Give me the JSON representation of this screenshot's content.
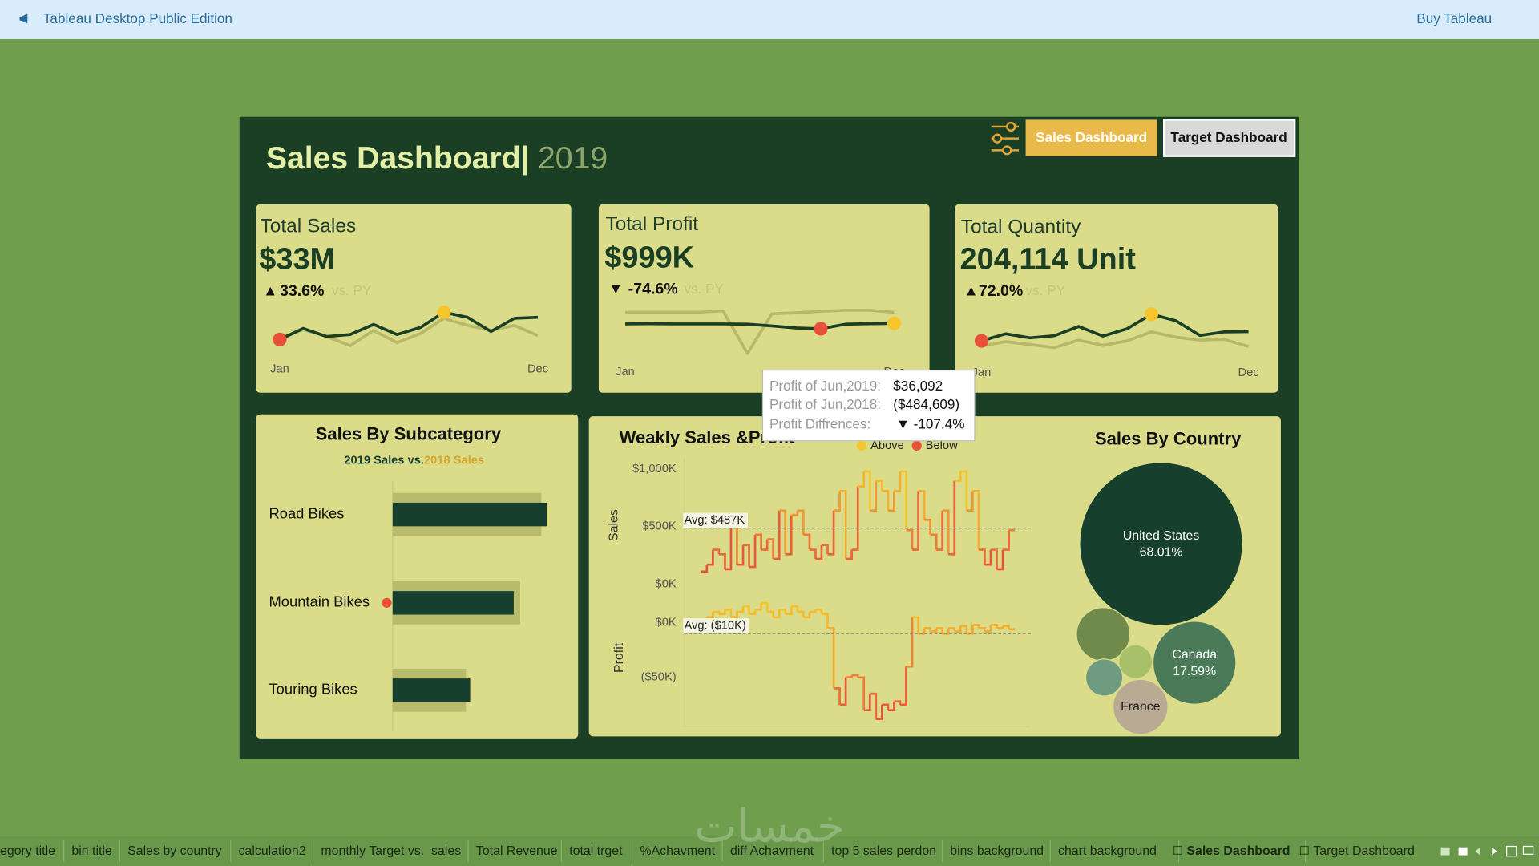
{
  "app": {
    "title": "Tableau Desktop Public Edition",
    "action": "Buy Tableau"
  },
  "dashboard": {
    "title": "Sales Dashboard|",
    "year": "2019",
    "buttons": [
      "Sales Dashboard",
      "Target Dashboard"
    ]
  },
  "kpis": [
    {
      "label": "Total Sales",
      "value": "$33M",
      "arrow": "▲",
      "change": "33.6%",
      "compare": "vs. PY",
      "start": "Jan",
      "end": "Dec",
      "current": [
        1.5,
        2.6,
        1.8,
        2.0,
        3.0,
        2.0,
        2.7,
        4.2,
        3.7,
        2.3,
        3.6,
        3.7
      ],
      "previous": [
        1.6,
        2.5,
        1.8,
        0.9,
        2.4,
        1.2,
        2.1,
        3.6,
        2.9,
        2.4,
        2.9,
        1.9
      ]
    },
    {
      "label": "Total Profit",
      "value": "$999K",
      "arrow": "▼",
      "change": "-74.6%",
      "compare": "vs. PY",
      "start": "Jan",
      "end": "Dec",
      "current": [
        100,
        105,
        100,
        100,
        100,
        95,
        60,
        20,
        5,
        95,
        105,
        110
      ],
      "previous": [
        330,
        330,
        330,
        330,
        360,
        -485,
        300,
        320,
        350,
        370,
        370,
        330
      ]
    },
    {
      "label": "Total Quantity",
      "value": "204,114 Unit",
      "arrow": "▲",
      "change": "72.0%",
      "compare": "vs. PY",
      "start": "Jan",
      "end": "Dec",
      "current": [
        10500,
        15200,
        12500,
        13900,
        20100,
        13700,
        18600,
        28300,
        24000,
        14100,
        16500,
        16700
      ],
      "previous": [
        7000,
        10000,
        8000,
        6000,
        11000,
        7500,
        10500,
        16500,
        13000,
        11000,
        11500,
        6700
      ]
    }
  ],
  "subcategory": {
    "title": "Sales By Subcategory",
    "separator": " vs.",
    "categories": [
      "Road Bikes",
      "Mountain Bikes",
      "Touring Bikes"
    ],
    "series": [
      {
        "name": "2019 Sales",
        "color": "#173f30",
        "values": [
          14.5,
          11.4,
          7.3
        ]
      },
      {
        "name": "2018 Sales",
        "color": "#b9bb6c",
        "values": [
          14.0,
          12.0,
          6.9
        ]
      }
    ]
  },
  "weekly": {
    "title": "Weakly Sales &Profit",
    "legend": [
      {
        "name": "Above",
        "color": "#f5c62c"
      },
      {
        "name": "Below",
        "color": "#e9503c"
      }
    ],
    "sales": {
      "axis_label": "Sales",
      "ylim": [
        0,
        1050000
      ],
      "yticks": [
        {
          "value": 0,
          "label": "$0K"
        },
        {
          "value": 500000,
          "label": "$500K"
        },
        {
          "value": 1000000,
          "label": "$1,000K"
        }
      ],
      "avg": 487000,
      "avg_label": "Avg: $487K",
      "values": [
        110000,
        170000,
        300000,
        260000,
        130000,
        560000,
        170000,
        340000,
        150000,
        430000,
        300000,
        390000,
        220000,
        640000,
        260000,
        600000,
        640000,
        430000,
        300000,
        220000,
        340000,
        260000,
        640000,
        810000,
        220000,
        300000,
        850000,
        980000,
        640000,
        900000,
        810000,
        640000,
        810000,
        980000,
        470000,
        300000,
        810000,
        560000,
        430000,
        300000,
        640000,
        260000,
        900000,
        980000,
        640000,
        810000,
        300000,
        170000,
        300000,
        130000,
        300000,
        470000
      ]
    },
    "profit": {
      "axis_label": "Profit",
      "ylim": [
        -95000,
        20000
      ],
      "yticks": [
        {
          "value": 0,
          "label": "$0K"
        },
        {
          "value": -50000,
          "label": "($50K)"
        }
      ],
      "avg": -10000,
      "avg_label": "Avg: ($10K)",
      "values": [
        -2000,
        5000,
        10000,
        8000,
        12000,
        5000,
        10000,
        15000,
        8000,
        12000,
        18000,
        10000,
        5000,
        12000,
        8000,
        15000,
        10000,
        5000,
        10000,
        12000,
        8000,
        -5000,
        -60000,
        -75000,
        -50000,
        -48000,
        -50000,
        -80000,
        -65000,
        -88000,
        -75000,
        -80000,
        -72000,
        -75000,
        -40000,
        5000,
        -10000,
        -5000,
        -8000,
        -5000,
        -10000,
        -5000,
        -8000,
        -3000,
        -10000,
        -2000,
        -5000,
        -8000,
        -2000,
        -5000,
        -3000,
        -6000
      ]
    }
  },
  "country": {
    "title": "Sales By Country",
    "names": [
      "United States",
      "Canada",
      "France",
      null,
      null,
      null
    ],
    "values": [
      68.01,
      17.59,
      7.7,
      7.3,
      2.9,
      3.5
    ],
    "value_labels": [
      "68.01%",
      "17.59%",
      null,
      null,
      null,
      null
    ],
    "colors": [
      "#163f2e",
      "#4b7a59",
      "#b8aa93",
      "#6f8a4a",
      "#a9c06b",
      "#6f9b80"
    ]
  },
  "tooltip": {
    "rows": [
      {
        "label": "Profit of Jun,2019:",
        "value": "$36,092"
      },
      {
        "label": "Profit of Jun,2018:",
        "value": "($484,609)"
      },
      {
        "label": "Profit Diffrences:",
        "value": "▼ -107.4%"
      }
    ]
  },
  "tabs": [
    "egory title",
    "bin title",
    "Sales by country",
    "calculation2",
    "monthly Target vs.  sales",
    "Total Revenue",
    "total trget",
    "%Achavment",
    "diff Achavment",
    "top 5 sales perdon",
    "bins background",
    "chart background",
    "Sales Dashboard",
    "Target Dashboard"
  ],
  "watermark": "خمسات"
}
